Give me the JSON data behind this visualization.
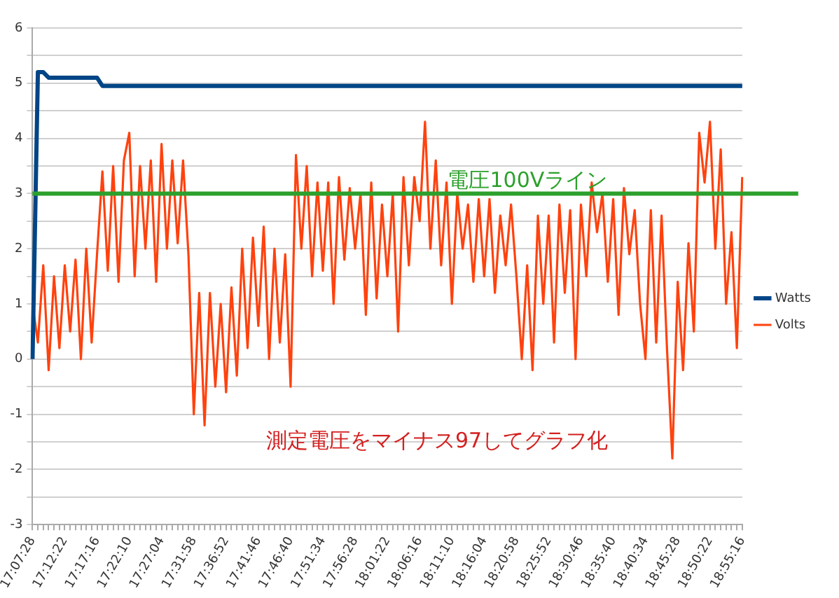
{
  "chart_data": {
    "type": "line",
    "categories": [
      "17:07:28",
      null,
      null,
      null,
      null,
      null,
      "17:12:22",
      null,
      null,
      null,
      null,
      null,
      "17:17:16",
      null,
      null,
      null,
      null,
      null,
      "17:22:10",
      null,
      null,
      null,
      null,
      null,
      "17:27:04",
      null,
      null,
      null,
      null,
      null,
      "17:31:58",
      null,
      null,
      null,
      null,
      null,
      "17:36:52",
      null,
      null,
      null,
      null,
      null,
      "17:41:46",
      null,
      null,
      null,
      null,
      null,
      "17:46:40",
      null,
      null,
      null,
      null,
      null,
      "17:51:34",
      null,
      null,
      null,
      null,
      null,
      "17:56:28",
      null,
      null,
      null,
      null,
      null,
      "18:01:22",
      null,
      null,
      null,
      null,
      null,
      "18:06:16",
      null,
      null,
      null,
      null,
      null,
      "18:11:10",
      null,
      null,
      null,
      null,
      null,
      "18:16:04",
      null,
      null,
      null,
      null,
      null,
      "18:20:58",
      null,
      null,
      null,
      null,
      null,
      "18:25:52",
      null,
      null,
      null,
      null,
      null,
      "18:30:46",
      null,
      null,
      null,
      null,
      null,
      "18:35:40",
      null,
      null,
      null,
      null,
      null,
      "18:40:34",
      null,
      null,
      null,
      null,
      null,
      "18:45:28",
      null,
      null,
      null,
      null,
      null,
      "18:50:22",
      null,
      null,
      null,
      null,
      null,
      "18:55:16"
    ],
    "series": [
      {
        "name": "Watts",
        "color": "#004586",
        "values": [
          0,
          5.2,
          5.2,
          5.1,
          5.1,
          5.1,
          5.1,
          5.1,
          5.1,
          5.1,
          5.1,
          5.1,
          5.1,
          4.95,
          4.95,
          4.95,
          4.95,
          4.95,
          4.95,
          4.95,
          4.95,
          4.95,
          4.95,
          4.95,
          4.95,
          4.95,
          4.95,
          4.95,
          4.95,
          4.95,
          4.95,
          4.95,
          4.95,
          4.95,
          4.95,
          4.95,
          4.95,
          4.95,
          4.95,
          4.95,
          4.95,
          4.95,
          4.95,
          4.95,
          4.95,
          4.95,
          4.95,
          4.95,
          4.95,
          4.95,
          4.95,
          4.95,
          4.95,
          4.95,
          4.95,
          4.95,
          4.95,
          4.95,
          4.95,
          4.95,
          4.95,
          4.95,
          4.95,
          4.95,
          4.95,
          4.95,
          4.95,
          4.95,
          4.95,
          4.95,
          4.95,
          4.95,
          4.95,
          4.95,
          4.95,
          4.95,
          4.95,
          4.95,
          4.95,
          4.95,
          4.95,
          4.95,
          4.95,
          4.95,
          4.95,
          4.95,
          4.95,
          4.95,
          4.95,
          4.95,
          4.95,
          4.95,
          4.95,
          4.95,
          4.95,
          4.95,
          4.95,
          4.95,
          4.95,
          4.95,
          4.95,
          4.95,
          4.95,
          4.95,
          4.95,
          4.95,
          4.95,
          4.95,
          4.95,
          4.95,
          4.95,
          4.95,
          4.95,
          4.95,
          4.95,
          4.95,
          4.95,
          4.95,
          4.95,
          4.95,
          4.95,
          4.95,
          4.95,
          4.95,
          4.95,
          4.95,
          4.95,
          4.95,
          4.95,
          4.95,
          4.95,
          4.95,
          4.95
        ]
      },
      {
        "name": "Volts",
        "color": "#ff420e",
        "values": [
          1.0,
          0.3,
          1.7,
          -0.2,
          1.5,
          0.2,
          1.7,
          0.5,
          1.8,
          0.0,
          2.0,
          0.3,
          1.9,
          3.4,
          1.6,
          3.5,
          1.4,
          3.6,
          4.1,
          1.5,
          3.5,
          2.0,
          3.6,
          1.4,
          3.9,
          2.0,
          3.6,
          2.1,
          3.6,
          1.9,
          -1.0,
          1.2,
          -1.2,
          1.2,
          -0.5,
          1.0,
          -0.6,
          1.3,
          -0.3,
          2.0,
          0.2,
          2.2,
          0.6,
          2.4,
          0.0,
          2.0,
          0.3,
          1.9,
          -0.5,
          3.7,
          2.0,
          3.5,
          1.5,
          3.2,
          1.6,
          3.2,
          1.0,
          3.3,
          1.8,
          3.1,
          2.0,
          3.0,
          0.8,
          3.2,
          1.1,
          2.8,
          1.5,
          3.0,
          0.5,
          3.3,
          1.7,
          3.3,
          2.5,
          4.3,
          2.0,
          3.6,
          1.7,
          3.2,
          1.0,
          3.0,
          2.0,
          2.8,
          1.4,
          2.9,
          1.5,
          2.9,
          1.2,
          2.6,
          1.7,
          2.8,
          1.5,
          0.0,
          1.7,
          -0.2,
          2.6,
          1.0,
          2.6,
          0.3,
          2.8,
          1.2,
          2.7,
          0.0,
          2.8,
          1.5,
          3.2,
          2.3,
          3.0,
          1.4,
          2.9,
          0.8,
          3.1,
          1.9,
          2.7,
          1.0,
          0.0,
          2.7,
          0.3,
          2.6,
          0.2,
          -1.8,
          1.4,
          -0.2,
          2.1,
          0.5,
          4.1,
          3.2,
          4.3,
          2.0,
          3.8,
          1.0,
          2.3,
          0.2,
          3.3
        ]
      }
    ],
    "ylim": [
      -3,
      6
    ],
    "yticks": [
      -3,
      {
        "value": -2.5,
        "label": null
      },
      -2,
      {
        "value": -1.5,
        "label": null
      },
      -1,
      {
        "value": -0.5,
        "label": null
      },
      0,
      {
        "value": 0.5,
        "label": null
      },
      1,
      {
        "value": 1.5,
        "label": null
      },
      2,
      {
        "value": 2.5,
        "label": null
      },
      3,
      {
        "value": 3.5,
        "label": null
      },
      4,
      {
        "value": 4.5,
        "label": null
      },
      5,
      {
        "value": 5.5,
        "label": null
      },
      6
    ],
    "grid": "y",
    "legend": "right",
    "marker": "none",
    "ref_lines": [
      {
        "axis": "y",
        "value": 3,
        "label": "電圧100Vライン",
        "color": "#2ca02c"
      }
    ],
    "annotations": [
      "測定電圧をマイナス97してグラフ化"
    ]
  }
}
